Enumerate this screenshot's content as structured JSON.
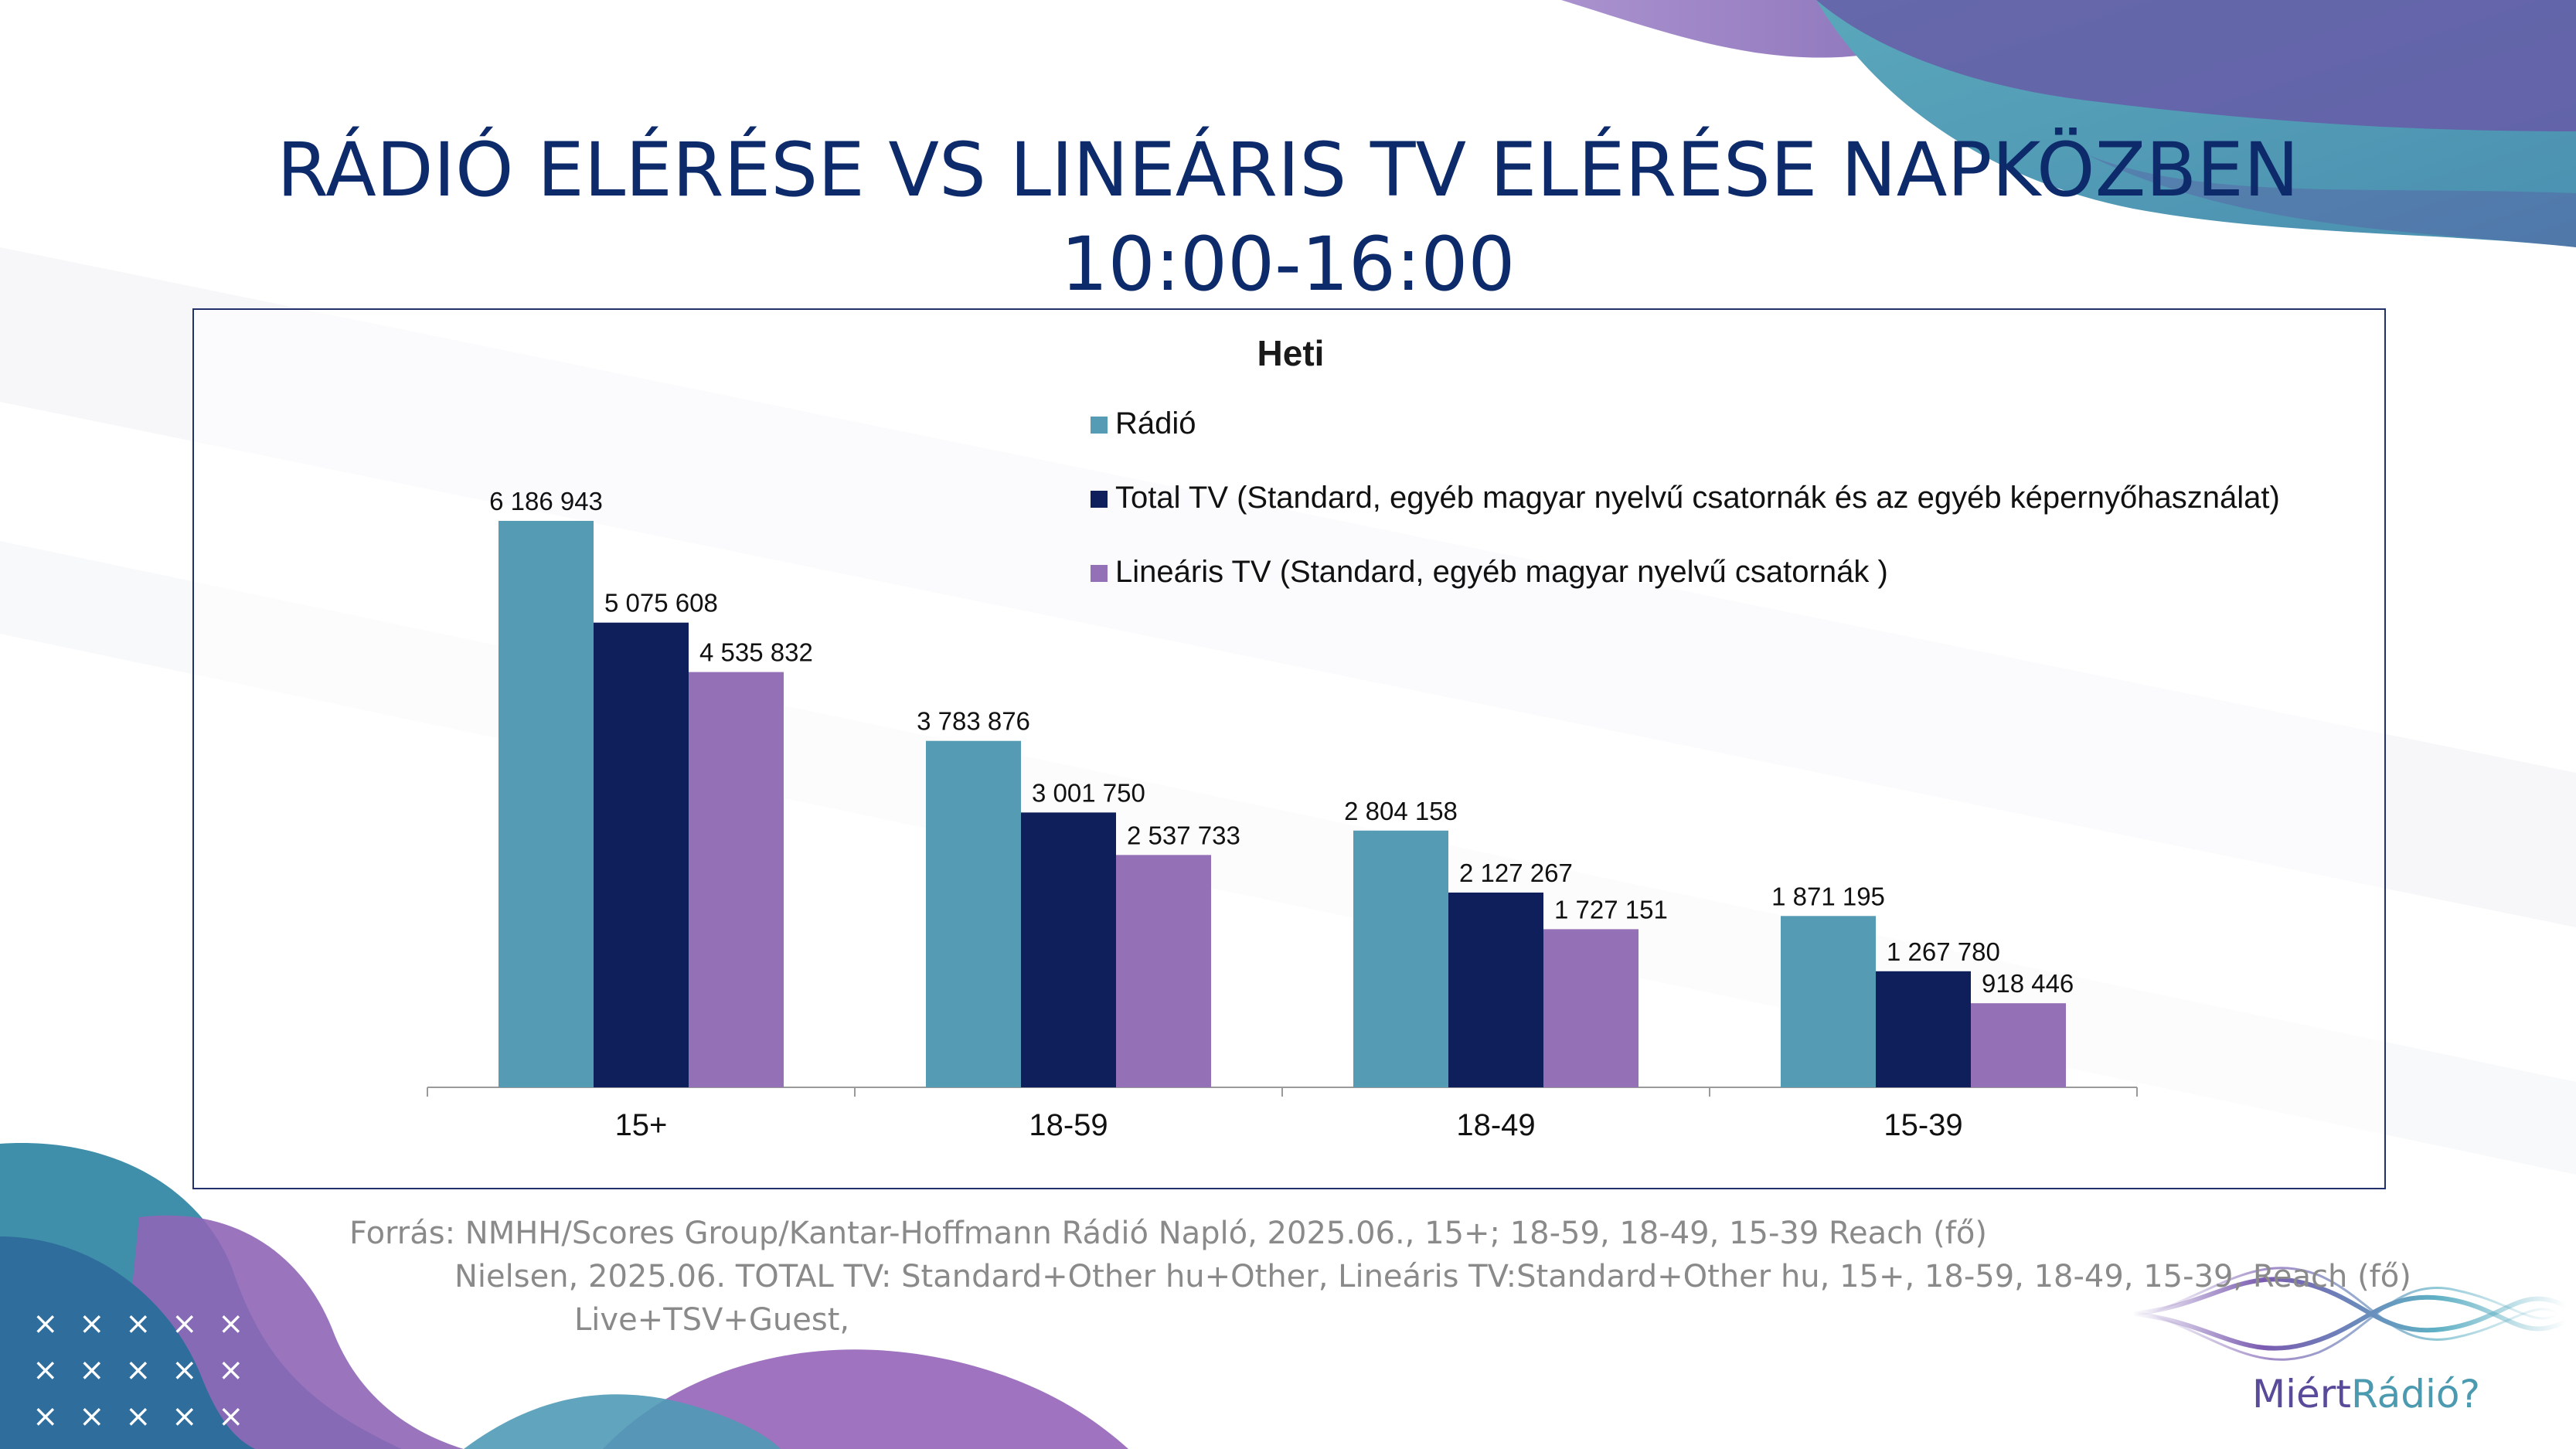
{
  "page": {
    "title_line1": "RÁDIÓ ELÉRÉSE VS LINEÁRIS TV ELÉRÉSE NAPKÖZBEN",
    "title_line2": "10:00-16:00",
    "source_line1": "Forrás: NMHH/Scores Group/Kantar-Hoffmann Rádió Napló, 2025.06.,  15+; 18-59, 18-49, 15-39 Reach (fő)",
    "source_line2": "Nielsen, 2025.06. TOTAL TV: Standard+Other hu+Other, Lineáris TV:Standard+Other hu, 15+, 18-59, 18-49, 15-39, Reach (fő)",
    "source_line3": "Live+TSV+Guest,",
    "brand_part1": "Miért",
    "brand_part2": "Rádió?"
  },
  "chart_data": {
    "type": "bar",
    "title": "Heti",
    "categories": [
      "15+",
      "18-59",
      "18-49",
      "15-39"
    ],
    "series": [
      {
        "name": "Rádió",
        "color": "#559bb3",
        "values": [
          6186943,
          3783876,
          2804158,
          1871195
        ],
        "labels": [
          "6 186 943",
          "3 783 876",
          "2 804 158",
          "1 871 195"
        ]
      },
      {
        "name": "Total TV (Standard, egyéb magyar nyelvű  csatornák  és az egyéb képernyőhasználat)",
        "color": "#0f1f5c",
        "values": [
          5075608,
          3001750,
          2127267,
          1267780
        ],
        "labels": [
          "5 075 608",
          "3 001 750",
          "2 127 267",
          "1 267 780"
        ]
      },
      {
        "name": "Lineáris TV (Standard, egyéb magyar nyelvű  csatornák )",
        "color": "#9470b6",
        "values": [
          4535832,
          2537733,
          1727151,
          918446
        ],
        "labels": [
          "4 535 832",
          "2 537 733",
          "1 727 151",
          "918 446"
        ]
      }
    ],
    "ylim": [
      0,
      7000000
    ],
    "xlabel": "",
    "ylabel": "",
    "legend_position": "top-right",
    "grid": false
  }
}
